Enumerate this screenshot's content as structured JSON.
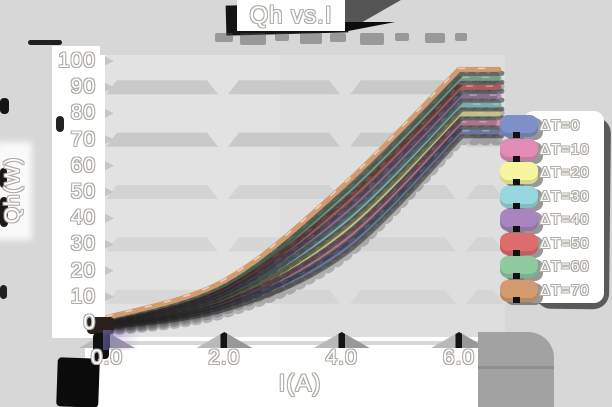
{
  "title": "Qh vs.I",
  "axes": {
    "x_label": "I(A)",
    "y_label": "Qh(W)",
    "x_ticks": [
      {
        "label": "0.0",
        "value": 0
      },
      {
        "label": "2.0",
        "value": 2
      },
      {
        "label": "4.0",
        "value": 4
      },
      {
        "label": "6.0",
        "value": 6
      }
    ],
    "y_ticks": [
      {
        "label": "0",
        "value": 0
      },
      {
        "label": "10",
        "value": 10
      },
      {
        "label": "20",
        "value": 20
      },
      {
        "label": "30",
        "value": 30
      },
      {
        "label": "40",
        "value": 40
      },
      {
        "label": "50",
        "value": 50
      },
      {
        "label": "60",
        "value": 60
      },
      {
        "label": "70",
        "value": 70
      },
      {
        "label": "80",
        "value": 80
      },
      {
        "label": "90",
        "value": 90
      },
      {
        "label": "100",
        "value": 100
      }
    ]
  },
  "colors": {
    "background": "#d7d7d7",
    "plot_background": "#dedede",
    "grid_band": "#c9c9c9",
    "axis_line": "#ffffff",
    "shadow_dark": "#1c1c1c",
    "shadow_mid": "#565656",
    "shadow_blob": "#a2a2a2",
    "text_fill": "#ffffff",
    "text_outline": "#b1aca7"
  },
  "chart_data": {
    "type": "line",
    "title": "Qh vs.I",
    "xlabel": "I(A)",
    "ylabel": "Qh(W)",
    "xlim": [
      0,
      6.9
    ],
    "ylim": [
      0,
      100
    ],
    "grid": "horizontal-bands",
    "grid_band_values": [
      90,
      70,
      50,
      30,
      10
    ],
    "legend_position": "right",
    "x": [
      0,
      2,
      4,
      6
    ],
    "flat_tail_x_end": 6.68,
    "series": [
      {
        "name": "ΔT=0",
        "color": "#7e90c8",
        "values": [
          0,
          7,
          28,
          73
        ]
      },
      {
        "name": "ΔT=10",
        "color": "#e18cb4",
        "values": [
          0.3,
          8.3,
          31.4,
          76.4
        ]
      },
      {
        "name": "ΔT=20",
        "color": "#f8f5a0",
        "values": [
          0.6,
          9.6,
          34.8,
          79.8
        ]
      },
      {
        "name": "ΔT=30",
        "color": "#96d8de",
        "values": [
          0.9,
          10.9,
          38.2,
          83.2
        ]
      },
      {
        "name": "ΔT=40",
        "color": "#a885be",
        "values": [
          1.2,
          12.2,
          41.6,
          86.6
        ]
      },
      {
        "name": "ΔT=50",
        "color": "#dd6c6c",
        "values": [
          1.5,
          13.5,
          45.0,
          90.0
        ]
      },
      {
        "name": "ΔT=60",
        "color": "#8fc9a0",
        "values": [
          1.8,
          14.8,
          48.4,
          93.4
        ]
      },
      {
        "name": "ΔT=70",
        "color": "#d39a6e",
        "values": [
          2.1,
          16.1,
          51.8,
          96.8
        ]
      }
    ]
  }
}
